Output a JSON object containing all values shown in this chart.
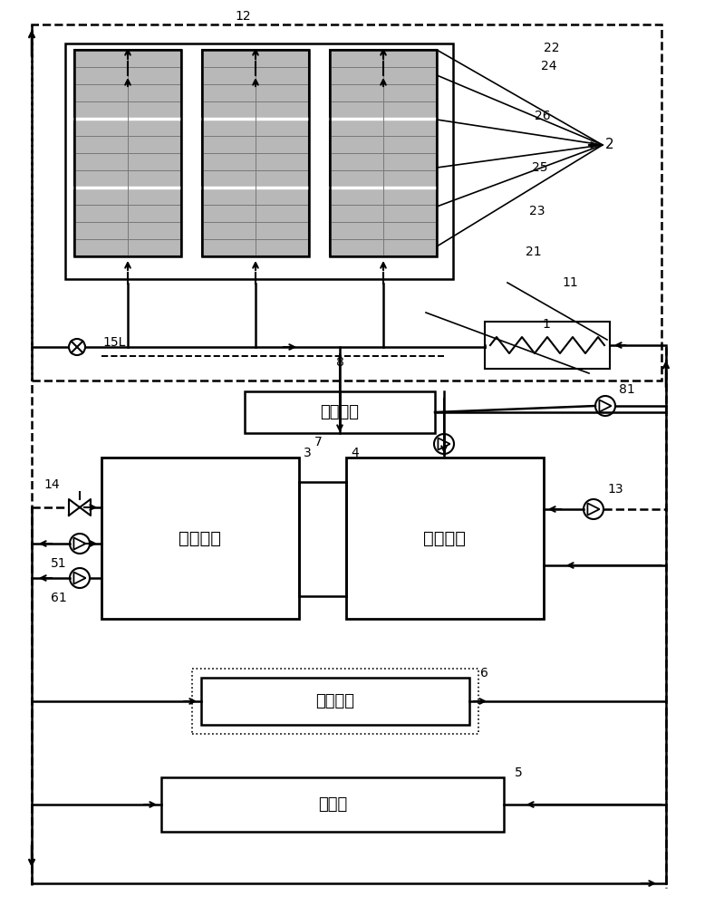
{
  "bg_color": "#ffffff",
  "line_color": "#000000",
  "solar_panel_fill": "#c0c0c0",
  "labels": {
    "solar_collector": "2",
    "label_22": "22",
    "label_24": "24",
    "label_26": "26",
    "label_25": "25",
    "label_23": "23",
    "label_21": "21",
    "label_11": "11",
    "label_1": "1",
    "label_12": "12",
    "label_15L": "15L",
    "label_8": "8",
    "label_81": "81",
    "label_14": "14",
    "label_3": "3",
    "label_7": "7",
    "label_4": "4",
    "label_13": "13",
    "label_51": "51",
    "label_61": "61",
    "label_6": "6",
    "label_5": "5",
    "aux_heat": "辅助热源",
    "high_temp_tank": "高温水笱",
    "low_temp_tank": "低温水笱",
    "heating_terminal": "采暖未端",
    "energy_storage": "蓄能区"
  }
}
